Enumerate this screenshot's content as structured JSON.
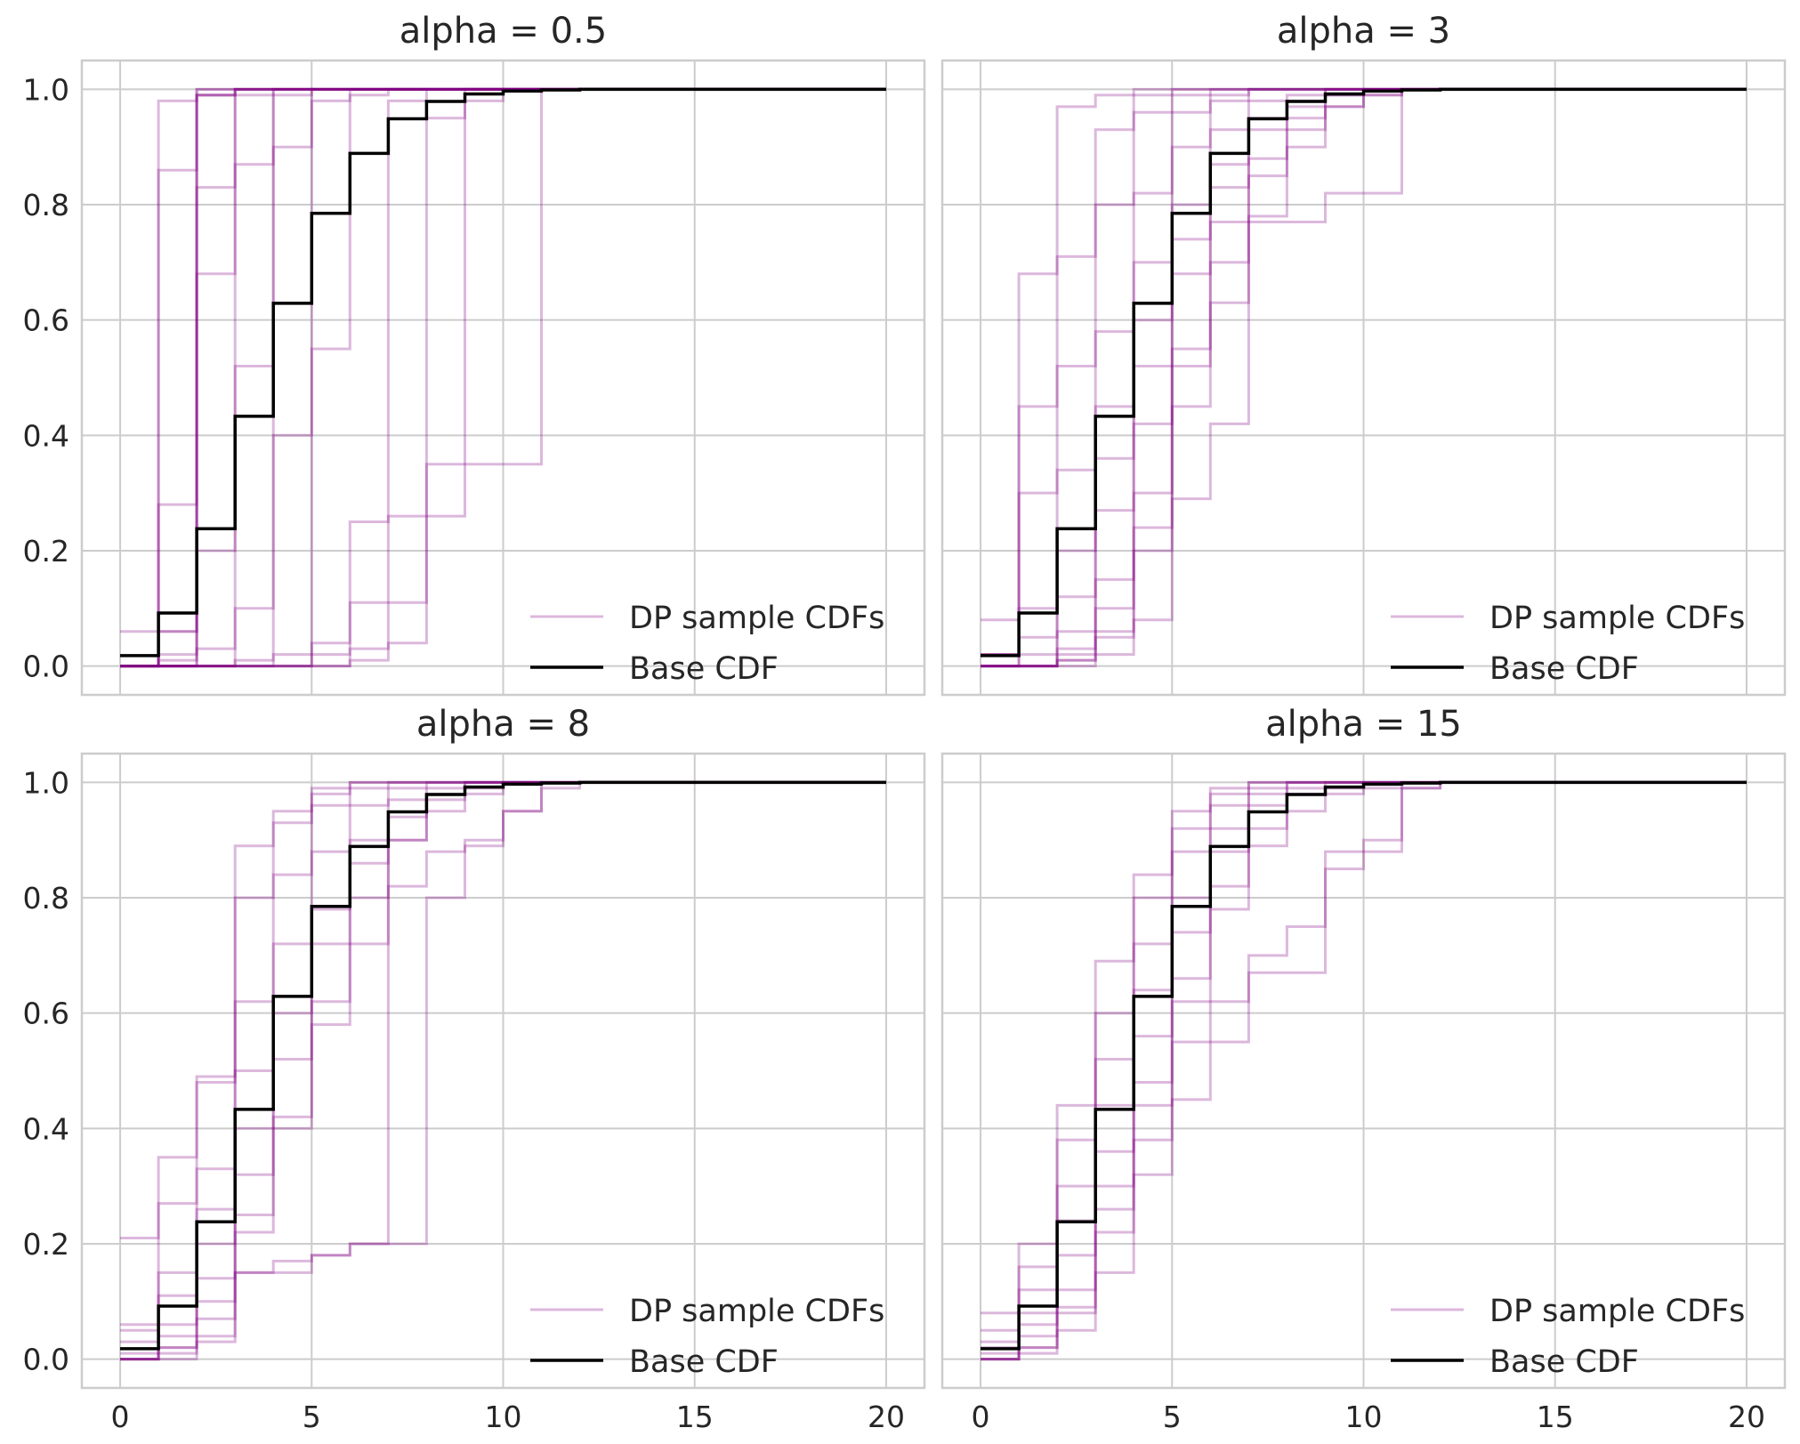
{
  "colors": {
    "dp_sample": "#800080",
    "base_cdf": "#000000",
    "grid": "#cccccc",
    "frame": "#cccccc",
    "background": "#ffffff"
  },
  "legend": {
    "dp_label": "DP sample CDFs",
    "base_label": "Base CDF",
    "position": "lower right"
  },
  "chart_data": [
    {
      "type": "line",
      "title": "alpha = 0.5",
      "xlim": [
        -1,
        21
      ],
      "ylim": [
        -0.05,
        1.05
      ],
      "xticks": [
        0,
        5,
        10,
        15,
        20
      ],
      "yticks": [
        "0.0",
        "0.2",
        "0.4",
        "0.6",
        "0.8",
        "1.0"
      ],
      "grid": true,
      "base_cdf": {
        "x": [
          0,
          1,
          2,
          3,
          4,
          5,
          6,
          7,
          8,
          9,
          10,
          11,
          12,
          13,
          14,
          15,
          16,
          17,
          18,
          19,
          20
        ],
        "y": [
          0.018,
          0.092,
          0.238,
          0.433,
          0.629,
          0.785,
          0.889,
          0.949,
          0.979,
          0.992,
          0.997,
          0.999,
          1,
          1,
          1,
          1,
          1,
          1,
          1,
          1,
          1
        ]
      },
      "dp_samples": [
        [
          0,
          0.98,
          1,
          1,
          1,
          1,
          1,
          1,
          1,
          1,
          1,
          1,
          1,
          1,
          1,
          1,
          1,
          1,
          1,
          1,
          1
        ],
        [
          0,
          0.86,
          0.99,
          1,
          1,
          1,
          1,
          1,
          1,
          1,
          1,
          1,
          1,
          1,
          1,
          1,
          1,
          1,
          1,
          1,
          1
        ],
        [
          0,
          0.28,
          0.99,
          1,
          1,
          1,
          1,
          1,
          1,
          1,
          1,
          1,
          1,
          1,
          1,
          1,
          1,
          1,
          1,
          1,
          1
        ],
        [
          0,
          0.06,
          0.99,
          1,
          1,
          1,
          1,
          1,
          1,
          1,
          1,
          1,
          1,
          1,
          1,
          1,
          1,
          1,
          1,
          1,
          1
        ],
        [
          0.06,
          0.06,
          1,
          1,
          1,
          1,
          1,
          1,
          1,
          1,
          1,
          1,
          1,
          1,
          1,
          1,
          1,
          1,
          1,
          1,
          1
        ],
        [
          0,
          0.02,
          0.83,
          1,
          1,
          1,
          1,
          1,
          1,
          1,
          1,
          1,
          1,
          1,
          1,
          1,
          1,
          1,
          1,
          1,
          1
        ],
        [
          0,
          0.01,
          0.68,
          0.99,
          1,
          1,
          1,
          1,
          1,
          1,
          1,
          1,
          1,
          1,
          1,
          1,
          1,
          1,
          1,
          1,
          1
        ],
        [
          0,
          0,
          0.2,
          0.87,
          1,
          1,
          1,
          1,
          1,
          1,
          1,
          1,
          1,
          1,
          1,
          1,
          1,
          1,
          1,
          1,
          1
        ],
        [
          0,
          0,
          0.03,
          0.52,
          0.99,
          1,
          1,
          1,
          1,
          1,
          1,
          1,
          1,
          1,
          1,
          1,
          1,
          1,
          1,
          1,
          1
        ],
        [
          0,
          0,
          0,
          0.1,
          0.9,
          1,
          1,
          1,
          1,
          1,
          1,
          1,
          1,
          1,
          1,
          1,
          1,
          1,
          1,
          1,
          1
        ],
        [
          0,
          0,
          0,
          0.01,
          0.4,
          0.98,
          1,
          1,
          1,
          1,
          1,
          1,
          1,
          1,
          1,
          1,
          1,
          1,
          1,
          1,
          1
        ],
        [
          0,
          0,
          0,
          0,
          0.02,
          0.55,
          0.99,
          1,
          1,
          1,
          1,
          1,
          1,
          1,
          1,
          1,
          1,
          1,
          1,
          1,
          1
        ],
        [
          0,
          0,
          0,
          0,
          0,
          0.04,
          0.25,
          0.98,
          1,
          1,
          1,
          1,
          1,
          1,
          1,
          1,
          1,
          1,
          1,
          1,
          1
        ],
        [
          0,
          0,
          0,
          0,
          0,
          0,
          0.11,
          0.11,
          0.95,
          1,
          1,
          1,
          1,
          1,
          1,
          1,
          1,
          1,
          1,
          1,
          1
        ],
        [
          0,
          0,
          0,
          0,
          0,
          0.02,
          0.03,
          0.26,
          0.26,
          0.98,
          1,
          1,
          1,
          1,
          1,
          1,
          1,
          1,
          1,
          1,
          1
        ],
        [
          0,
          0,
          0,
          0,
          0,
          0,
          0.01,
          0.04,
          0.35,
          0.35,
          0.35,
          1,
          1,
          1,
          1,
          1,
          1,
          1,
          1,
          1,
          1
        ]
      ]
    },
    {
      "type": "line",
      "title": "alpha = 3",
      "xlim": [
        -1,
        21
      ],
      "ylim": [
        -0.05,
        1.05
      ],
      "xticks": [
        0,
        5,
        10,
        15,
        20
      ],
      "yticks": [
        "0.0",
        "0.2",
        "0.4",
        "0.6",
        "0.8",
        "1.0"
      ],
      "grid": true,
      "base_cdf": {
        "x": [
          0,
          1,
          2,
          3,
          4,
          5,
          6,
          7,
          8,
          9,
          10,
          11,
          12,
          13,
          14,
          15,
          16,
          17,
          18,
          19,
          20
        ],
        "y": [
          0.018,
          0.092,
          0.238,
          0.433,
          0.629,
          0.785,
          0.889,
          0.949,
          0.979,
          0.992,
          0.997,
          0.999,
          1,
          1,
          1,
          1,
          1,
          1,
          1,
          1,
          1
        ]
      },
      "dp_samples": [
        [
          0.02,
          0.68,
          0.97,
          0.99,
          1,
          1,
          1,
          1,
          1,
          1,
          1,
          1,
          1,
          1,
          1,
          1,
          1,
          1,
          1,
          1,
          1
        ],
        [
          0.02,
          0.45,
          0.71,
          0.93,
          0.99,
          1,
          1,
          1,
          1,
          1,
          1,
          1,
          1,
          1,
          1,
          1,
          1,
          1,
          1,
          1,
          1
        ],
        [
          0.08,
          0.3,
          0.52,
          0.8,
          0.96,
          0.99,
          1,
          1,
          1,
          1,
          1,
          1,
          1,
          1,
          1,
          1,
          1,
          1,
          1,
          1,
          1
        ],
        [
          0.02,
          0.1,
          0.34,
          0.58,
          0.82,
          0.96,
          0.99,
          1,
          1,
          1,
          1,
          1,
          1,
          1,
          1,
          1,
          1,
          1,
          1,
          1,
          1
        ],
        [
          0,
          0.05,
          0.2,
          0.45,
          0.7,
          0.9,
          0.98,
          1,
          1,
          1,
          1,
          1,
          1,
          1,
          1,
          1,
          1,
          1,
          1,
          1,
          1
        ],
        [
          0,
          0.02,
          0.12,
          0.36,
          0.6,
          0.8,
          0.93,
          0.98,
          0.99,
          1,
          1,
          1,
          1,
          1,
          1,
          1,
          1,
          1,
          1,
          1,
          1
        ],
        [
          0,
          0,
          0.06,
          0.27,
          0.52,
          0.74,
          0.87,
          0.95,
          0.98,
          1,
          1,
          1,
          1,
          1,
          1,
          1,
          1,
          1,
          1,
          1,
          1
        ],
        [
          0,
          0,
          0.03,
          0.15,
          0.42,
          0.68,
          0.83,
          0.93,
          0.97,
          0.99,
          1,
          1,
          1,
          1,
          1,
          1,
          1,
          1,
          1,
          1,
          1
        ],
        [
          0,
          0,
          0.02,
          0.1,
          0.3,
          0.55,
          0.77,
          0.88,
          0.95,
          0.99,
          1,
          1,
          1,
          1,
          1,
          1,
          1,
          1,
          1,
          1,
          1
        ],
        [
          0,
          0,
          0.01,
          0.05,
          0.2,
          0.45,
          0.63,
          0.78,
          0.9,
          0.97,
          0.99,
          1,
          1,
          1,
          1,
          1,
          1,
          1,
          1,
          1,
          1
        ],
        [
          0,
          0,
          0,
          0.02,
          0.08,
          0.29,
          0.42,
          0.77,
          0.77,
          0.82,
          0.82,
          1,
          1,
          1,
          1,
          1,
          1,
          1,
          1,
          1,
          1
        ],
        [
          0,
          0,
          0.01,
          0.06,
          0.24,
          0.52,
          0.7,
          0.85,
          0.93,
          0.97,
          0.99,
          1,
          1,
          1,
          1,
          1,
          1,
          1,
          1,
          1,
          1
        ]
      ]
    },
    {
      "type": "line",
      "title": "alpha = 8",
      "xlim": [
        -1,
        21
      ],
      "ylim": [
        -0.05,
        1.05
      ],
      "xticks": [
        0,
        5,
        10,
        15,
        20
      ],
      "yticks": [
        "0.0",
        "0.2",
        "0.4",
        "0.6",
        "0.8",
        "1.0"
      ],
      "grid": true,
      "base_cdf": {
        "x": [
          0,
          1,
          2,
          3,
          4,
          5,
          6,
          7,
          8,
          9,
          10,
          11,
          12,
          13,
          14,
          15,
          16,
          17,
          18,
          19,
          20
        ],
        "y": [
          0.018,
          0.092,
          0.238,
          0.433,
          0.629,
          0.785,
          0.889,
          0.949,
          0.979,
          0.992,
          0.997,
          0.999,
          1,
          1,
          1,
          1,
          1,
          1,
          1,
          1,
          1
        ]
      },
      "dp_samples": [
        [
          0.21,
          0.35,
          0.49,
          0.89,
          0.95,
          0.99,
          1,
          1,
          1,
          1,
          1,
          1,
          1,
          1,
          1,
          1,
          1,
          1,
          1,
          1,
          1
        ],
        [
          0.06,
          0.27,
          0.48,
          0.8,
          0.93,
          0.98,
          1,
          1,
          1,
          1,
          1,
          1,
          1,
          1,
          1,
          1,
          1,
          1,
          1,
          1,
          1
        ],
        [
          0.05,
          0.15,
          0.33,
          0.62,
          0.84,
          0.96,
          0.99,
          1,
          1,
          1,
          1,
          1,
          1,
          1,
          1,
          1,
          1,
          1,
          1,
          1,
          1
        ],
        [
          0.03,
          0.11,
          0.26,
          0.5,
          0.72,
          0.88,
          0.96,
          0.99,
          1,
          1,
          1,
          1,
          1,
          1,
          1,
          1,
          1,
          1,
          1,
          1,
          1
        ],
        [
          0.01,
          0.06,
          0.2,
          0.4,
          0.6,
          0.78,
          0.9,
          0.97,
          0.99,
          1,
          1,
          1,
          1,
          1,
          1,
          1,
          1,
          1,
          1,
          1,
          1
        ],
        [
          0,
          0.04,
          0.14,
          0.32,
          0.52,
          0.72,
          0.86,
          0.94,
          0.98,
          1,
          1,
          1,
          1,
          1,
          1,
          1,
          1,
          1,
          1,
          1,
          1
        ],
        [
          0,
          0.02,
          0.1,
          0.25,
          0.42,
          0.62,
          0.8,
          0.9,
          0.97,
          0.99,
          1,
          1,
          1,
          1,
          1,
          1,
          1,
          1,
          1,
          1,
          1
        ],
        [
          0,
          0.02,
          0.04,
          0.15,
          0.15,
          0.18,
          0.2,
          0.9,
          0.95,
          0.98,
          1,
          1,
          1,
          1,
          1,
          1,
          1,
          1,
          1,
          1,
          1
        ],
        [
          0,
          0,
          0.03,
          0.15,
          0.17,
          0.18,
          0.2,
          0.2,
          0.8,
          0.9,
          0.95,
          1,
          1,
          1,
          1,
          1,
          1,
          1,
          1,
          1,
          1
        ],
        [
          0,
          0.01,
          0.07,
          0.22,
          0.4,
          0.58,
          0.72,
          0.82,
          0.88,
          0.89,
          0.95,
          0.99,
          1,
          1,
          1,
          1,
          1,
          1,
          1,
          1,
          1
        ]
      ]
    },
    {
      "type": "line",
      "title": "alpha = 15",
      "xlim": [
        -1,
        21
      ],
      "ylim": [
        -0.05,
        1.05
      ],
      "xticks": [
        0,
        5,
        10,
        15,
        20
      ],
      "yticks": [
        "0.0",
        "0.2",
        "0.4",
        "0.6",
        "0.8",
        "1.0"
      ],
      "grid": true,
      "base_cdf": {
        "x": [
          0,
          1,
          2,
          3,
          4,
          5,
          6,
          7,
          8,
          9,
          10,
          11,
          12,
          13,
          14,
          15,
          16,
          17,
          18,
          19,
          20
        ],
        "y": [
          0.018,
          0.092,
          0.238,
          0.433,
          0.629,
          0.785,
          0.889,
          0.949,
          0.979,
          0.992,
          0.997,
          0.999,
          1,
          1,
          1,
          1,
          1,
          1,
          1,
          1,
          1
        ]
      },
      "dp_samples": [
        [
          0.08,
          0.2,
          0.44,
          0.69,
          0.84,
          0.95,
          0.99,
          1,
          1,
          1,
          1,
          1,
          1,
          1,
          1,
          1,
          1,
          1,
          1,
          1,
          1
        ],
        [
          0.05,
          0.16,
          0.38,
          0.6,
          0.8,
          0.92,
          0.98,
          1,
          1,
          1,
          1,
          1,
          1,
          1,
          1,
          1,
          1,
          1,
          1,
          1,
          1
        ],
        [
          0.03,
          0.12,
          0.3,
          0.52,
          0.72,
          0.88,
          0.96,
          0.99,
          1,
          1,
          1,
          1,
          1,
          1,
          1,
          1,
          1,
          1,
          1,
          1,
          1
        ],
        [
          0.02,
          0.08,
          0.24,
          0.44,
          0.64,
          0.8,
          0.92,
          0.98,
          1,
          1,
          1,
          1,
          1,
          1,
          1,
          1,
          1,
          1,
          1,
          1,
          1
        ],
        [
          0.01,
          0.06,
          0.18,
          0.36,
          0.56,
          0.74,
          0.88,
          0.96,
          0.99,
          1,
          1,
          1,
          1,
          1,
          1,
          1,
          1,
          1,
          1,
          1,
          1
        ],
        [
          0,
          0.04,
          0.12,
          0.3,
          0.48,
          0.66,
          0.82,
          0.92,
          0.98,
          0.99,
          1,
          1,
          1,
          1,
          1,
          1,
          1,
          1,
          1,
          1,
          1
        ],
        [
          0,
          0.02,
          0.08,
          0.22,
          0.38,
          0.55,
          0.62,
          0.67,
          0.67,
          0.88,
          0.9,
          0.99,
          1,
          1,
          1,
          1,
          1,
          1,
          1,
          1,
          1
        ],
        [
          0,
          0.01,
          0.05,
          0.15,
          0.32,
          0.45,
          0.55,
          0.7,
          0.75,
          0.85,
          0.88,
          0.99,
          1,
          1,
          1,
          1,
          1,
          1,
          1,
          1,
          1
        ],
        [
          0,
          0.02,
          0.09,
          0.26,
          0.44,
          0.62,
          0.78,
          0.89,
          0.95,
          0.98,
          0.99,
          1,
          1,
          1,
          1,
          1,
          1,
          1,
          1,
          1,
          1
        ]
      ]
    }
  ]
}
